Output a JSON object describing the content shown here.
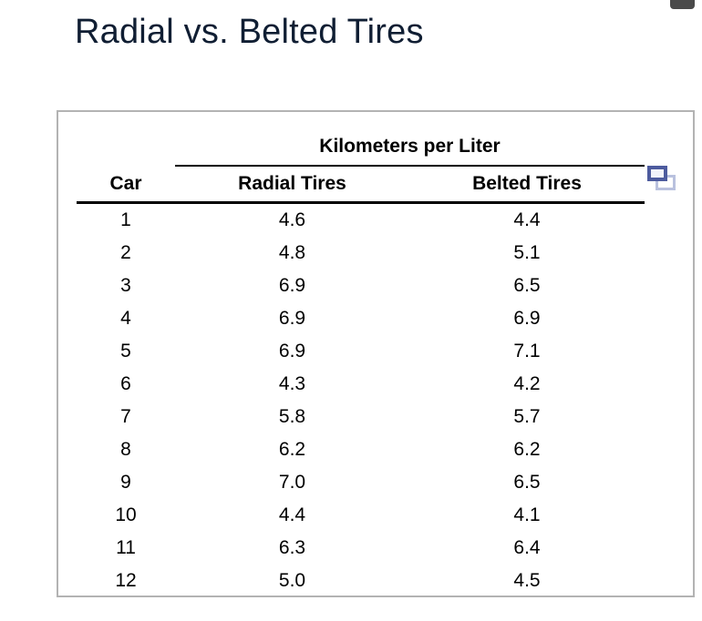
{
  "page": {
    "title": "Radial vs. Belted Tires"
  },
  "panel": {
    "spanner_label": "Kilometers per Liter",
    "columns": [
      "Car",
      "Radial Tires",
      "Belted Tires"
    ],
    "icon": "popout-copy-icon",
    "rows": [
      {
        "car": "1",
        "radial": "4.6",
        "belted": "4.4"
      },
      {
        "car": "2",
        "radial": "4.8",
        "belted": "5.1"
      },
      {
        "car": "3",
        "radial": "6.9",
        "belted": "6.5"
      },
      {
        "car": "4",
        "radial": "6.9",
        "belted": "6.9"
      },
      {
        "car": "5",
        "radial": "6.9",
        "belted": "7.1"
      },
      {
        "car": "6",
        "radial": "4.3",
        "belted": "4.2"
      },
      {
        "car": "7",
        "radial": "5.8",
        "belted": "5.7"
      },
      {
        "car": "8",
        "radial": "6.2",
        "belted": "6.2"
      },
      {
        "car": "9",
        "radial": "7.0",
        "belted": "6.5"
      },
      {
        "car": "10",
        "radial": "4.4",
        "belted": "4.1"
      },
      {
        "car": "11",
        "radial": "6.3",
        "belted": "6.4"
      },
      {
        "car": "12",
        "radial": "5.0",
        "belted": "4.5"
      }
    ]
  },
  "colors": {
    "title_text": "#101e33",
    "table_border": "#b3b3b3",
    "icon_dark": "#4d5b9e",
    "icon_light": "#b9c1de",
    "top_pill": "#4a4a4a"
  },
  "chart_data": {
    "type": "table",
    "title": "Radial vs. Belted Tires",
    "spanner": "Kilometers per Liter",
    "columns": [
      "Car",
      "Radial Tires",
      "Belted Tires"
    ],
    "rows": [
      [
        1,
        4.6,
        4.4
      ],
      [
        2,
        4.8,
        5.1
      ],
      [
        3,
        6.9,
        6.5
      ],
      [
        4,
        6.9,
        6.9
      ],
      [
        5,
        6.9,
        7.1
      ],
      [
        6,
        4.3,
        4.2
      ],
      [
        7,
        5.8,
        5.7
      ],
      [
        8,
        6.2,
        6.2
      ],
      [
        9,
        7.0,
        6.5
      ],
      [
        10,
        4.4,
        4.1
      ],
      [
        11,
        6.3,
        6.4
      ],
      [
        12,
        5.0,
        4.5
      ]
    ]
  }
}
